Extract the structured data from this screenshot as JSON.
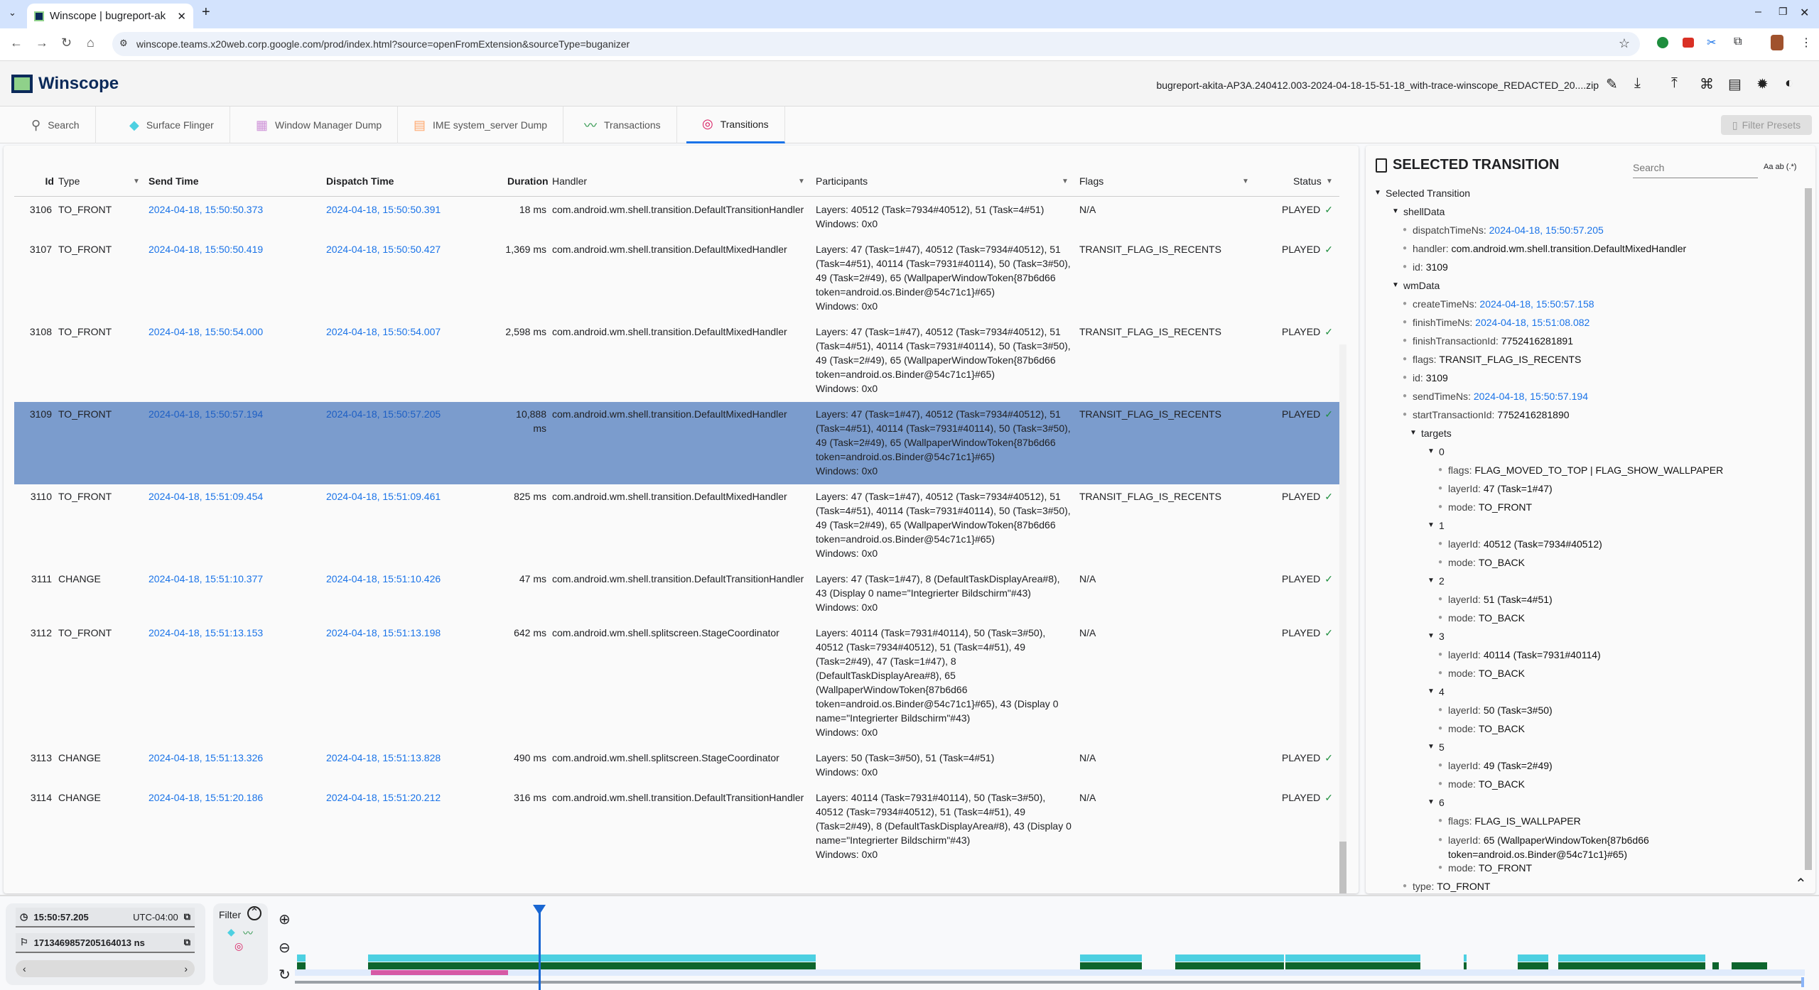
{
  "browser": {
    "tab_title": "Winscope | bugreport-ak",
    "url": "winscope.teams.x20web.corp.google.com/prod/index.html?source=openFromExtension&sourceType=buganizer"
  },
  "app": {
    "name": "Winscope",
    "filename": "bugreport-akita-AP3A.240412.003-2024-04-18-15-51-18_with-trace-winscope_REDACTED_20....zip",
    "header_icons": [
      "edit-icon",
      "download-icon",
      "upload-icon",
      "shortcuts-icon",
      "documentation-icon",
      "bug-icon",
      "theme-icon"
    ]
  },
  "tabs": [
    {
      "label": "Search",
      "icon": "search-icon",
      "color": "#666666"
    },
    {
      "label": "Surface Flinger",
      "icon": "layers-icon",
      "color": "#4dd0e1"
    },
    {
      "label": "Window Manager Dump",
      "icon": "window-icon",
      "color": "#ce93d8"
    },
    {
      "label": "IME system_server Dump",
      "icon": "keyboard-icon",
      "color": "#ffa66b"
    },
    {
      "label": "Transactions",
      "icon": "timeline-icon",
      "color": "#1e8e3e"
    },
    {
      "label": "Transitions",
      "icon": "transitions-icon",
      "color": "#d81b60",
      "active": true
    }
  ],
  "filter_presets_label": "Filter Presets",
  "table": {
    "headers": {
      "id": "Id",
      "type": "Type",
      "send_time": "Send Time",
      "dispatch_time": "Dispatch Time",
      "duration": "Duration",
      "handler": "Handler",
      "participants": "Participants",
      "flags": "Flags",
      "status": "Status"
    },
    "rows": [
      {
        "id": "3106",
        "type": "TO_FRONT",
        "send": "2024-04-18, 15:50:50.373",
        "dispatch": "2024-04-18, 15:50:50.391",
        "duration": "18 ms",
        "handler": "com.android.wm.shell.transition.DefaultTransitionHandler",
        "layers": "Layers: 40512 (Task=7934#40512), 51 (Task=4#51)",
        "windows": "Windows: 0x0",
        "flags": "N/A",
        "status": "PLAYED"
      },
      {
        "id": "3107",
        "type": "TO_FRONT",
        "send": "2024-04-18, 15:50:50.419",
        "dispatch": "2024-04-18, 15:50:50.427",
        "duration": "1,369 ms",
        "handler": "com.android.wm.shell.transition.DefaultMixedHandler",
        "layers": "Layers: 47 (Task=1#47), 40512 (Task=7934#40512), 51 (Task=4#51), 40114 (Task=7931#40114), 50 (Task=3#50), 49 (Task=2#49), 65 (WallpaperWindowToken{87b6d66 token=android.os.Binder@54c71c1}#65)",
        "windows": "Windows: 0x0",
        "flags": "TRANSIT_FLAG_IS_RECENTS",
        "status": "PLAYED"
      },
      {
        "id": "3108",
        "type": "TO_FRONT",
        "send": "2024-04-18, 15:50:54.000",
        "dispatch": "2024-04-18, 15:50:54.007",
        "duration": "2,598 ms",
        "handler": "com.android.wm.shell.transition.DefaultMixedHandler",
        "layers": "Layers: 47 (Task=1#47), 40512 (Task=7934#40512), 51 (Task=4#51), 40114 (Task=7931#40114), 50 (Task=3#50), 49 (Task=2#49), 65 (WallpaperWindowToken{87b6d66 token=android.os.Binder@54c71c1}#65)",
        "windows": "Windows: 0x0",
        "flags": "TRANSIT_FLAG_IS_RECENTS",
        "status": "PLAYED"
      },
      {
        "id": "3109",
        "type": "TO_FRONT",
        "send": "2024-04-18, 15:50:57.194",
        "dispatch": "2024-04-18, 15:50:57.205",
        "duration": "10,888 ms",
        "handler": "com.android.wm.shell.transition.DefaultMixedHandler",
        "layers": "Layers: 47 (Task=1#47), 40512 (Task=7934#40512), 51 (Task=4#51), 40114 (Task=7931#40114), 50 (Task=3#50), 49 (Task=2#49), 65 (WallpaperWindowToken{87b6d66 token=android.os.Binder@54c71c1}#65)",
        "windows": "Windows: 0x0",
        "flags": "TRANSIT_FLAG_IS_RECENTS",
        "status": "PLAYED",
        "selected": true
      },
      {
        "id": "3110",
        "type": "TO_FRONT",
        "send": "2024-04-18, 15:51:09.454",
        "dispatch": "2024-04-18, 15:51:09.461",
        "duration": "825 ms",
        "handler": "com.android.wm.shell.transition.DefaultMixedHandler",
        "layers": "Layers: 47 (Task=1#47), 40512 (Task=7934#40512), 51 (Task=4#51), 40114 (Task=7931#40114), 50 (Task=3#50), 49 (Task=2#49), 65 (WallpaperWindowToken{87b6d66 token=android.os.Binder@54c71c1}#65)",
        "windows": "Windows: 0x0",
        "flags": "TRANSIT_FLAG_IS_RECENTS",
        "status": "PLAYED"
      },
      {
        "id": "3111",
        "type": "CHANGE",
        "send": "2024-04-18, 15:51:10.377",
        "dispatch": "2024-04-18, 15:51:10.426",
        "duration": "47 ms",
        "handler": "com.android.wm.shell.transition.DefaultTransitionHandler",
        "layers": "Layers: 47 (Task=1#47), 8 (DefaultTaskDisplayArea#8), 43 (Display 0 name=\"Integrierter Bildschirm\"#43)",
        "windows": "Windows: 0x0",
        "flags": "N/A",
        "status": "PLAYED"
      },
      {
        "id": "3112",
        "type": "TO_FRONT",
        "send": "2024-04-18, 15:51:13.153",
        "dispatch": "2024-04-18, 15:51:13.198",
        "duration": "642 ms",
        "handler": "com.android.wm.shell.splitscreen.StageCoordinator",
        "layers": "Layers: 40114 (Task=7931#40114), 50 (Task=3#50), 40512 (Task=7934#40512), 51 (Task=4#51), 49 (Task=2#49), 47 (Task=1#47), 8 (DefaultTaskDisplayArea#8), 65 (WallpaperWindowToken{87b6d66 token=android.os.Binder@54c71c1}#65), 43 (Display 0 name=\"Integrierter Bildschirm\"#43)",
        "windows": "Windows: 0x0",
        "flags": "N/A",
        "status": "PLAYED"
      },
      {
        "id": "3113",
        "type": "CHANGE",
        "send": "2024-04-18, 15:51:13.326",
        "dispatch": "2024-04-18, 15:51:13.828",
        "duration": "490 ms",
        "handler": "com.android.wm.shell.splitscreen.StageCoordinator",
        "layers": "Layers: 50 (Task=3#50), 51 (Task=4#51)",
        "windows": "Windows: 0x0",
        "flags": "N/A",
        "status": "PLAYED"
      },
      {
        "id": "3114",
        "type": "CHANGE",
        "send": "2024-04-18, 15:51:20.186",
        "dispatch": "2024-04-18, 15:51:20.212",
        "duration": "316 ms",
        "handler": "com.android.wm.shell.transition.DefaultTransitionHandler",
        "layers": "Layers: 40114 (Task=7931#40114), 50 (Task=3#50), 40512 (Task=7934#40512), 51 (Task=4#51), 49 (Task=2#49), 8 (DefaultTaskDisplayArea#8), 43 (Display 0 name=\"Integrierter Bildschirm\"#43)",
        "windows": "Windows: 0x0",
        "flags": "N/A",
        "status": "PLAYED"
      }
    ]
  },
  "selected": {
    "title": "SELECTED TRANSITION",
    "search_placeholder": "Search",
    "search_options": "Aa  ab  (.*)",
    "tree": [
      {
        "d": 0,
        "g": true,
        "k": "Selected Transition"
      },
      {
        "d": 1,
        "g": true,
        "k": "shellData"
      },
      {
        "d": 2,
        "k": "dispatchTimeNs",
        "v": "2024-04-18, 15:50:57.205",
        "link": true
      },
      {
        "d": 2,
        "k": "handler",
        "v": "com.android.wm.shell.transition.DefaultMixedHandler"
      },
      {
        "d": 2,
        "k": "id",
        "v": "3109"
      },
      {
        "d": 1,
        "g": true,
        "k": "wmData"
      },
      {
        "d": 2,
        "k": "createTimeNs",
        "v": "2024-04-18, 15:50:57.158",
        "link": true
      },
      {
        "d": 2,
        "k": "finishTimeNs",
        "v": "2024-04-18, 15:51:08.082",
        "link": true
      },
      {
        "d": 2,
        "k": "finishTransactionId",
        "v": "7752416281891"
      },
      {
        "d": 2,
        "k": "flags",
        "v": "TRANSIT_FLAG_IS_RECENTS"
      },
      {
        "d": 2,
        "k": "id",
        "v": "3109"
      },
      {
        "d": 2,
        "k": "sendTimeNs",
        "v": "2024-04-18, 15:50:57.194",
        "link": true
      },
      {
        "d": 2,
        "k": "startTransactionId",
        "v": "7752416281890"
      },
      {
        "d": 2,
        "g": true,
        "k": "targets"
      },
      {
        "d": 3,
        "g": true,
        "k": "0"
      },
      {
        "d": 4,
        "k": "flags",
        "v": "FLAG_MOVED_TO_TOP | FLAG_SHOW_WALLPAPER"
      },
      {
        "d": 4,
        "k": "layerId",
        "v": "47 (Task=1#47)"
      },
      {
        "d": 4,
        "k": "mode",
        "v": "TO_FRONT"
      },
      {
        "d": 3,
        "g": true,
        "k": "1"
      },
      {
        "d": 4,
        "k": "layerId",
        "v": "40512 (Task=7934#40512)"
      },
      {
        "d": 4,
        "k": "mode",
        "v": "TO_BACK"
      },
      {
        "d": 3,
        "g": true,
        "k": "2"
      },
      {
        "d": 4,
        "k": "layerId",
        "v": "51 (Task=4#51)"
      },
      {
        "d": 4,
        "k": "mode",
        "v": "TO_BACK"
      },
      {
        "d": 3,
        "g": true,
        "k": "3"
      },
      {
        "d": 4,
        "k": "layerId",
        "v": "40114 (Task=7931#40114)"
      },
      {
        "d": 4,
        "k": "mode",
        "v": "TO_BACK"
      },
      {
        "d": 3,
        "g": true,
        "k": "4"
      },
      {
        "d": 4,
        "k": "layerId",
        "v": "50 (Task=3#50)"
      },
      {
        "d": 4,
        "k": "mode",
        "v": "TO_BACK"
      },
      {
        "d": 3,
        "g": true,
        "k": "5"
      },
      {
        "d": 4,
        "k": "layerId",
        "v": "49 (Task=2#49)"
      },
      {
        "d": 4,
        "k": "mode",
        "v": "TO_BACK"
      },
      {
        "d": 3,
        "g": true,
        "k": "6"
      },
      {
        "d": 4,
        "k": "flags",
        "v": "FLAG_IS_WALLPAPER"
      },
      {
        "d": 4,
        "k": "layerId",
        "v": "65 (WallpaperWindowToken{87b6d66 token=android.os.Binder@54c71c1}#65)"
      },
      {
        "d": 4,
        "k": "mode",
        "v": "TO_FRONT"
      },
      {
        "d": 2,
        "k": "type",
        "v": "TO_FRONT"
      }
    ]
  },
  "timeline": {
    "time": "15:50:57.205",
    "timezone": "UTC-04:00",
    "ns": "1713469857205164013 ns",
    "filter_label": "Filter",
    "colors": {
      "surface_flinger": "#4dd0e1",
      "transactions": "#0d652d",
      "transitions": "#d65aa5",
      "cursor": "#1a67d2"
    }
  }
}
